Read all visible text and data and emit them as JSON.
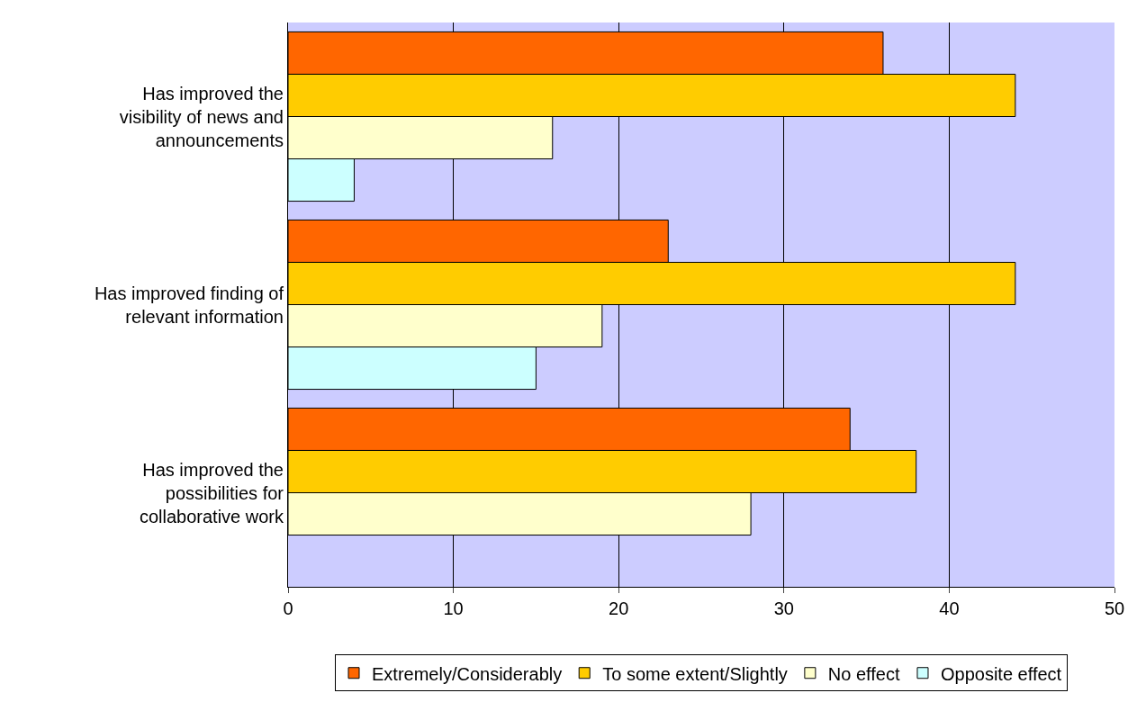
{
  "chart_data": {
    "type": "bar",
    "orientation": "horizontal",
    "categories": [
      "Has improved the visibility of news and announcements",
      "Has improved finding of relevant information",
      "Has improved the possibilities for collaborative work"
    ],
    "series": [
      {
        "name": "Extremely/Considerably",
        "color": "#ff6600",
        "values": [
          36,
          23,
          34
        ]
      },
      {
        "name": "To some extent/Slightly",
        "color": "#ffcc00",
        "values": [
          44,
          44,
          38
        ]
      },
      {
        "name": "No effect",
        "color": "#ffffcc",
        "values": [
          16,
          19,
          28
        ]
      },
      {
        "name": "Opposite effect",
        "color": "#ccffff",
        "values": [
          4,
          15,
          null
        ]
      }
    ],
    "xlim": [
      0,
      50
    ],
    "xticks": [
      0,
      10,
      20,
      30,
      40,
      50
    ],
    "grid": "x",
    "legend": "bottom"
  }
}
